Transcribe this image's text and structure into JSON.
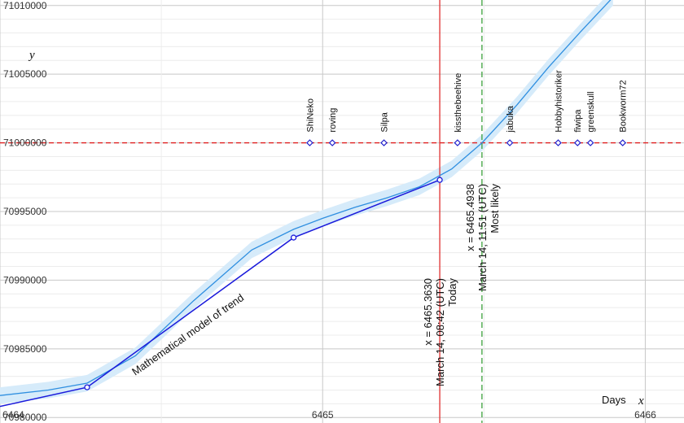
{
  "chart_data": {
    "type": "line",
    "title": "",
    "xlabel": {
      "word": "Days",
      "symbol": "x"
    },
    "ylabel": "y",
    "xlim": [
      6464.0,
      6466.12
    ],
    "ylim": [
      70979600,
      71010400
    ],
    "grid": true,
    "x_ticks": [
      6464,
      6465,
      6466
    ],
    "x_tick_labels": [
      "6464",
      "6465",
      "6466"
    ],
    "y_ticks": [
      70980000,
      70985000,
      70990000,
      70995000,
      71000000,
      71005000
    ],
    "y_tick_labels": [
      "70980000",
      "70985000",
      "70990000",
      "70995000",
      "71000000",
      "71005000"
    ],
    "top_partial_label": "71010000",
    "series": [
      {
        "kind": "observed",
        "color": "#1a1adb",
        "x": [
          6464.0,
          6464.27,
          6464.91,
          6465.363
        ],
        "y": [
          70980800,
          70982200,
          70993100,
          70997300
        ]
      },
      {
        "kind": "model",
        "label": "Mathematical model of trend",
        "color": "#2f8fe0",
        "band_color": "#d6ebfa",
        "x": [
          6464.0,
          6464.15,
          6464.27,
          6464.42,
          6464.6,
          6464.78,
          6464.91,
          6465.0,
          6465.1,
          6465.2,
          6465.3,
          6465.4,
          6465.4938,
          6465.6,
          6465.7,
          6465.8,
          6465.9
        ],
        "y": [
          70981600,
          70982000,
          70982500,
          70984500,
          70988500,
          70992200,
          70993700,
          70994500,
          70995300,
          70996000,
          70996800,
          70998100,
          71000000,
          71002700,
          71005500,
          71008100,
          71010600
        ],
        "band_halfwidth": 600
      }
    ],
    "target_line": {
      "y": 71000000,
      "color": "#e02020"
    },
    "vertical_lines": [
      {
        "x": 6465.363,
        "color": "#e03030",
        "style": "solid",
        "lines": [
          "x = 6465.3630",
          "March 14, 08:42 (UTC)",
          "Today"
        ]
      },
      {
        "x": 6465.4938,
        "color": "#3aa03a",
        "style": "dashed",
        "lines": [
          "x = 6465.4938",
          "March 14, 11:51 (UTC)",
          "Most likely"
        ]
      }
    ],
    "predictions": [
      {
        "name": "ShiNeko",
        "x": 6464.96
      },
      {
        "name": "roving",
        "x": 6465.03
      },
      {
        "name": "Silpa",
        "x": 6465.19
      },
      {
        "name": "kissthebeehive",
        "x": 6465.418
      },
      {
        "name": "jabuka",
        "x": 6465.58
      },
      {
        "name": "Hobbyhistoriker",
        "x": 6465.73
      },
      {
        "name": "fiwipa",
        "x": 6465.79
      },
      {
        "name": "greenskull",
        "x": 6465.83
      },
      {
        "name": "Bookworm72",
        "x": 6465.93
      }
    ]
  }
}
